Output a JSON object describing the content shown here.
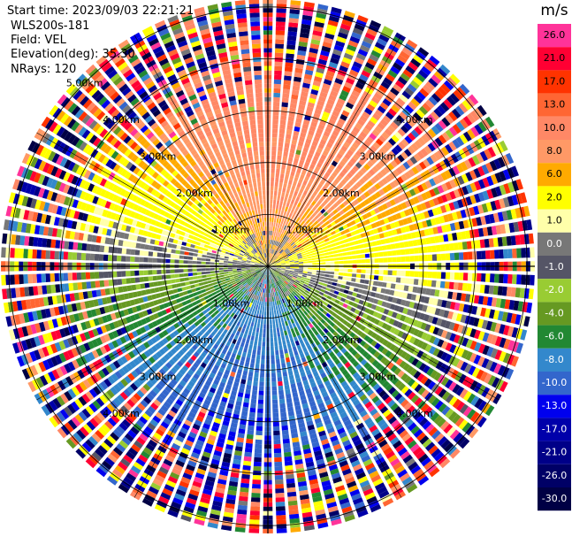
{
  "header": {
    "start_time": "Start time: 2023/09/03 22:21:21",
    "instrument": "WLS200s-181",
    "field": "Field: VEL",
    "elevation": "Elevation(deg): 35.30",
    "nrays": "NRays: 120"
  },
  "chart_data": {
    "type": "heatmap",
    "projection": "polar PPI",
    "field": "VEL",
    "units": "m/s",
    "nrays": 120,
    "ring_labels": [
      "1.00km",
      "2.00km",
      "3.00km",
      "4.00km",
      "5.00km"
    ],
    "ring_ranges_km": [
      1,
      2,
      3,
      4,
      5
    ],
    "max_range_km": 5.15,
    "colorbar": {
      "title": "m/s",
      "ticks": [
        "26.0",
        "21.0",
        "17.0",
        "13.0",
        "10.0",
        "8.0",
        "6.0",
        "2.0",
        "1.0",
        "0.0",
        "-1.0",
        "-2.0",
        "-4.0",
        "-6.0",
        "-8.0",
        "-10.0",
        "-13.0",
        "-17.0",
        "-21.0",
        "-26.0",
        "-30.0"
      ],
      "colors": [
        "#ff3399",
        "#ff0033",
        "#ff3300",
        "#ff6633",
        "#ff8866",
        "#ff9966",
        "#ffaa00",
        "#ffff00",
        "#ffffaa",
        "#777777",
        "#555566",
        "#99cc33",
        "#669922",
        "#228833",
        "#3388cc",
        "#3366cc",
        "#0000ee",
        "#0000aa",
        "#000088",
        "#000066",
        "#000044"
      ]
    },
    "sector_mean_velocity": [
      {
        "direction": "north",
        "value": 11
      },
      {
        "direction": "east",
        "value": 1.5
      },
      {
        "direction": "south",
        "value": -9
      },
      {
        "direction": "west",
        "value": -2
      }
    ]
  }
}
